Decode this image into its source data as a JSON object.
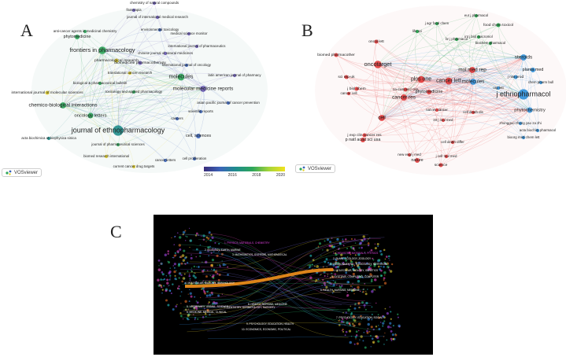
{
  "panels": {
    "a": {
      "letter": "A"
    },
    "b": {
      "letter": "B"
    },
    "c": {
      "letter": "C"
    }
  },
  "vosviewer_label": "VOSviewer",
  "colors": {
    "purple": "#6b5bb5",
    "blue": "#3b64b9",
    "teal": "#1f8d8b",
    "green": "#2ea65a",
    "yellow": "#e3cf2a",
    "red": "#e23a3a",
    "lightblue": "#2f8fd8",
    "darkgreen": "#1e9e46",
    "orange": "#e88a1a"
  },
  "chart_data": [
    {
      "type": "scatter",
      "name": "A",
      "colorbar": {
        "ticks": [
          "2014",
          "2016",
          "2018",
          "2020"
        ]
      },
      "nodes": [
        {
          "label": "journal of ethnopharmacology",
          "size": 6,
          "color": "teal"
        },
        {
          "label": "frontiers in pharmacology",
          "size": 4,
          "color": "green"
        },
        {
          "label": "chemico-biological interactions",
          "size": 3,
          "color": "green"
        },
        {
          "label": "molecules",
          "size": 3.5,
          "color": "green"
        },
        {
          "label": "molecular medicine reports",
          "size": 3,
          "color": "purple"
        },
        {
          "label": "oncology letters",
          "size": 2.5,
          "color": "green"
        },
        {
          "label": "chemistry of natural compounds",
          "size": 1,
          "color": "purple"
        },
        {
          "label": "fitoterapia",
          "size": 1,
          "color": "purple"
        },
        {
          "label": "journal of international medical research",
          "size": 1,
          "color": "purple"
        },
        {
          "label": "anti-cancer agents in medicinal chemistry",
          "size": 1,
          "color": "green"
        },
        {
          "label": "phytomedicine",
          "size": 2,
          "color": "green"
        },
        {
          "label": "environmental toxicology",
          "size": 1,
          "color": "blue"
        },
        {
          "label": "medical science monitor",
          "size": 1,
          "color": "purple"
        },
        {
          "label": "international journal of pharmaceutics",
          "size": 1,
          "color": "purple"
        },
        {
          "label": "pharmacological research",
          "size": 1.5,
          "color": "yellow"
        },
        {
          "label": "biomedicine pharmacotherapy",
          "size": 1.5,
          "color": "purple"
        },
        {
          "label": "chinese journal of natural medicines",
          "size": 1,
          "color": "purple"
        },
        {
          "label": "international journal of oncology",
          "size": 1,
          "color": "blue"
        },
        {
          "label": "translational cancer research",
          "size": 1,
          "color": "yellow"
        },
        {
          "label": "biological & pharmaceutical bulletin",
          "size": 1,
          "color": "green"
        },
        {
          "label": "latin american journal of pharmacy",
          "size": 1,
          "color": "purple"
        },
        {
          "label": "international journal of molecular sciences",
          "size": 1.5,
          "color": "yellow"
        },
        {
          "label": "toxicology and applied pharmacology",
          "size": 1,
          "color": "green"
        },
        {
          "label": "asian pacific journal of cancer prevention",
          "size": 1,
          "color": "blue"
        },
        {
          "label": "scientific reports",
          "size": 1,
          "color": "blue"
        },
        {
          "label": "cancers",
          "size": 1,
          "color": "blue"
        },
        {
          "label": "cell, sciences",
          "size": 2,
          "color": "blue"
        },
        {
          "label": "acta biochimica et biophysica sinica",
          "size": 1,
          "color": "teal"
        },
        {
          "label": "journal of pharmaceutical sciences",
          "size": 1,
          "color": "green"
        },
        {
          "label": "biomed research international",
          "size": 1,
          "color": "yellow"
        },
        {
          "label": "cancer letters",
          "size": 1,
          "color": "blue"
        },
        {
          "label": "cell proliferation",
          "size": 1,
          "color": "blue"
        },
        {
          "label": "current cancer drug targets",
          "size": 1,
          "color": "yellow"
        }
      ]
    },
    {
      "type": "scatter",
      "name": "B",
      "nodes": [
        {
          "label": "j ethnopharmacol",
          "size": 6,
          "color": "lightblue"
        },
        {
          "label": "oncotarget",
          "size": 4,
          "color": "red"
        },
        {
          "label": "plos one",
          "size": 3.5,
          "color": "red"
        },
        {
          "label": "cancer lett",
          "size": 3.5,
          "color": "red"
        },
        {
          "label": "mol med rep",
          "size": 3,
          "color": "red"
        },
        {
          "label": "molecules",
          "size": 3,
          "color": "lightblue"
        },
        {
          "label": "steroids",
          "size": 3,
          "color": "lightblue"
        },
        {
          "label": "planta med",
          "size": 2,
          "color": "lightblue"
        },
        {
          "label": "phytochemistry",
          "size": 2.5,
          "color": "lightblue"
        },
        {
          "label": "cancer res",
          "size": 3,
          "color": "red"
        },
        {
          "label": "cell",
          "size": 3,
          "color": "red"
        },
        {
          "label": "nature",
          "size": 2,
          "color": "red"
        },
        {
          "label": "science",
          "size": 1.5,
          "color": "red"
        },
        {
          "label": "p natl acad sci usa",
          "size": 2,
          "color": "red"
        },
        {
          "label": "j exp clin cancer res",
          "size": 1.5,
          "color": "red"
        },
        {
          "label": "biomed pharmacother",
          "size": 1.5,
          "color": "red"
        },
        {
          "label": "ca-cancer j clin",
          "size": 1.5,
          "color": "red"
        },
        {
          "label": "cancer cell",
          "size": 1,
          "color": "red"
        },
        {
          "label": "j biol chem",
          "size": 1.5,
          "color": "red"
        },
        {
          "label": "phytomedicine",
          "size": 2,
          "color": "red"
        },
        {
          "label": "sci rep-uk",
          "size": 1.5,
          "color": "red"
        },
        {
          "label": "oncol lett",
          "size": 1.5,
          "color": "red"
        },
        {
          "label": "nat rev cancer",
          "size": 1,
          "color": "red"
        },
        {
          "label": "new engl j med",
          "size": 1,
          "color": "red"
        },
        {
          "label": "int j mol med",
          "size": 1,
          "color": "red"
        },
        {
          "label": "cell death differ",
          "size": 1,
          "color": "red"
        },
        {
          "label": "cell death dis",
          "size": 1,
          "color": "red"
        },
        {
          "label": "j cell mol med",
          "size": 1,
          "color": "red"
        },
        {
          "label": "food chem toxicol",
          "size": 1.5,
          "color": "darkgreen"
        },
        {
          "label": "eur j pharmacol",
          "size": 1,
          "color": "darkgreen"
        },
        {
          "label": "br j pharmacol",
          "size": 1,
          "color": "darkgreen"
        },
        {
          "label": "biochem pharmacol",
          "size": 1,
          "color": "darkgreen"
        },
        {
          "label": "life sci",
          "size": 1,
          "color": "darkgreen"
        },
        {
          "label": "j agr food chem",
          "size": 1,
          "color": "darkgreen"
        },
        {
          "label": "int j biol macromol",
          "size": 1,
          "color": "darkgreen"
        },
        {
          "label": "zhongguo zhong yao za zhi",
          "size": 1,
          "color": "lightblue"
        },
        {
          "label": "acta biochim pharmacol",
          "size": 1,
          "color": "lightblue"
        },
        {
          "label": "bioorg med chem lett",
          "size": 1,
          "color": "lightblue"
        },
        {
          "label": "j nat prod",
          "size": 1.5,
          "color": "lightblue"
        },
        {
          "label": "org lett",
          "size": 1,
          "color": "lightblue"
        },
        {
          "label": "chem pharm bull",
          "size": 1,
          "color": "lightblue"
        }
      ]
    },
    {
      "type": "dual-map overlay",
      "name": "C",
      "left_clusters": [
        {
          "label": "1. PHYSICS, MATERIALS, CHEMISTRY",
          "color": "#e040e0"
        },
        {
          "label": "2. ECOLOGY, EARTH, MARINE",
          "color": "#ffffff"
        },
        {
          "label": "3. MATHEMATICS, SYSTEMS, MATHEMATICAL",
          "color": "#ffffff"
        },
        {
          "label": "4. MOLECULAR, BIOLOGY, IMMUNOLOGY",
          "color": "#ffffff"
        },
        {
          "label": "5. VETERINARY, ANIMAL, SCIENCE",
          "color": "#ffffff"
        },
        {
          "label": "6. MEDICINE, MEDICAL, CLINICAL",
          "color": "#ffffff"
        },
        {
          "label": "7. DENTISTRY, DERMATOLOGY, SURGERY",
          "color": "#ffffff"
        },
        {
          "label": "8. HEALTH, NURSING, MEDICINE",
          "color": "#ffffff"
        },
        {
          "label": "9. PSYCHOLOGY, EDUCATION, HEALTH",
          "color": "#ffffff"
        },
        {
          "label": "10. ECONOMICS, ECONOMIC, POLITICAL",
          "color": "#ffffff"
        }
      ],
      "right_clusters": [
        {
          "label": "1. CHEMISTRY, MATERIALS, PHYSICS",
          "color": "#e040e0"
        },
        {
          "label": "2. PLANT, ECOLOGY, ZOOLOGY",
          "color": "#ffffff"
        },
        {
          "label": "3. ENVIRONMENTAL, TOXICOLOGY, NUTRITION",
          "color": "#ffffff"
        },
        {
          "label": "4. MOLECULAR, BIOLOGY, GENETICS",
          "color": "#ffffff"
        },
        {
          "label": "5. SYSTEMS, COMPUTING, COMPUTER",
          "color": "#ffffff"
        },
        {
          "label": "6. HEALTH, NURSING, MEDICINE",
          "color": "#ffffff"
        },
        {
          "label": "7. PSYCHOLOGY, EDUCATION, SOCIAL",
          "color": "#ffffff"
        }
      ],
      "main_link": {
        "from": "4. MOLECULAR, BIOLOGY, IMMUNOLOGY",
        "to": "4. MOLECULAR, BIOLOGY, GENETICS",
        "color": "orange"
      }
    }
  ]
}
